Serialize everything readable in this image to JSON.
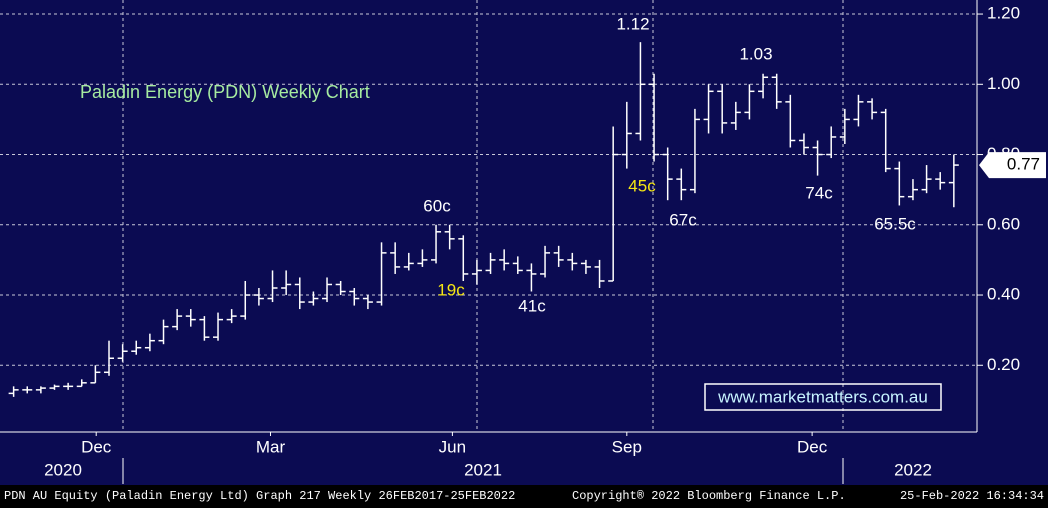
{
  "chart_data": {
    "type": "ohlc",
    "title": "Paladin Energy (PDN) Weekly Chart",
    "color": "#ffffff",
    "background": "#0b0b52",
    "grid": true,
    "xlim": [
      0,
      71.7
    ],
    "ylim": [
      0.01,
      1.24
    ],
    "yticks": [
      {
        "value": 0.2,
        "label": "0.20"
      },
      {
        "value": 0.4,
        "label": "0.40"
      },
      {
        "value": 0.6,
        "label": "0.60"
      },
      {
        "value": 0.8,
        "label": "0.80"
      },
      {
        "value": 1.0,
        "label": "1.00"
      },
      {
        "value": 1.2,
        "label": "1.20"
      }
    ],
    "xticks": [
      {
        "value": 7.06,
        "label": "Dec"
      },
      {
        "value": 19.85,
        "label": "Mar"
      },
      {
        "value": 33.2,
        "label": "Jun"
      },
      {
        "value": 46.0,
        "label": "Sep"
      },
      {
        "value": 59.6,
        "label": "Dec"
      }
    ],
    "year_labels": [
      "2020",
      "2021",
      "2022"
    ],
    "x": [
      1,
      2,
      3,
      4,
      5,
      6,
      7,
      8,
      9,
      10,
      11,
      12,
      13,
      14,
      15,
      16,
      17,
      18,
      19,
      20,
      21,
      22,
      23,
      24,
      25,
      26,
      27,
      28,
      29,
      30,
      31,
      32,
      33,
      34,
      35,
      36,
      37,
      38,
      39,
      40,
      41,
      42,
      43,
      44,
      45,
      46,
      47,
      48,
      49,
      50,
      51,
      52,
      53,
      54,
      55,
      56,
      57,
      58,
      59,
      60,
      61,
      62,
      63,
      64,
      65,
      66,
      67,
      68,
      69,
      70
    ],
    "open": [
      0.12,
      0.13,
      0.13,
      0.135,
      0.14,
      0.14,
      0.15,
      0.18,
      0.22,
      0.24,
      0.25,
      0.27,
      0.31,
      0.34,
      0.33,
      0.28,
      0.33,
      0.34,
      0.4,
      0.39,
      0.42,
      0.43,
      0.38,
      0.39,
      0.43,
      0.41,
      0.39,
      0.38,
      0.52,
      0.48,
      0.49,
      0.5,
      0.58,
      0.56,
      0.46,
      0.47,
      0.5,
      0.49,
      0.47,
      0.46,
      0.52,
      0.5,
      0.49,
      0.48,
      0.44,
      0.8,
      0.86,
      1.0,
      0.8,
      0.73,
      0.7,
      0.9,
      0.98,
      0.89,
      0.92,
      0.98,
      1.02,
      0.95,
      0.84,
      0.82,
      0.8,
      0.85,
      0.9,
      0.95,
      0.92,
      0.76,
      0.68,
      0.7,
      0.73,
      0.72
    ],
    "high": [
      0.14,
      0.14,
      0.14,
      0.145,
      0.15,
      0.16,
      0.2,
      0.27,
      0.26,
      0.27,
      0.29,
      0.33,
      0.36,
      0.36,
      0.34,
      0.35,
      0.36,
      0.44,
      0.42,
      0.47,
      0.47,
      0.45,
      0.41,
      0.45,
      0.44,
      0.42,
      0.4,
      0.55,
      0.55,
      0.52,
      0.53,
      0.6,
      0.6,
      0.57,
      0.5,
      0.52,
      0.53,
      0.51,
      0.49,
      0.54,
      0.54,
      0.52,
      0.5,
      0.5,
      0.88,
      0.95,
      1.12,
      1.03,
      0.82,
      0.76,
      0.93,
      1.0,
      1.0,
      0.95,
      1.0,
      1.03,
      1.03,
      0.97,
      0.86,
      0.84,
      0.88,
      0.93,
      0.97,
      0.96,
      0.93,
      0.78,
      0.73,
      0.77,
      0.75,
      0.8
    ],
    "low": [
      0.11,
      0.12,
      0.12,
      0.13,
      0.13,
      0.14,
      0.15,
      0.17,
      0.21,
      0.23,
      0.24,
      0.26,
      0.3,
      0.31,
      0.27,
      0.27,
      0.32,
      0.33,
      0.37,
      0.38,
      0.4,
      0.36,
      0.37,
      0.38,
      0.4,
      0.37,
      0.36,
      0.37,
      0.46,
      0.47,
      0.48,
      0.49,
      0.53,
      0.44,
      0.43,
      0.46,
      0.47,
      0.46,
      0.41,
      0.45,
      0.48,
      0.47,
      0.46,
      0.42,
      0.44,
      0.76,
      0.84,
      0.78,
      0.67,
      0.67,
      0.69,
      0.86,
      0.86,
      0.87,
      0.9,
      0.96,
      0.93,
      0.82,
      0.8,
      0.74,
      0.79,
      0.83,
      0.88,
      0.9,
      0.75,
      0.655,
      0.67,
      0.69,
      0.7,
      0.65
    ],
    "close": [
      0.13,
      0.13,
      0.135,
      0.14,
      0.14,
      0.15,
      0.18,
      0.22,
      0.24,
      0.25,
      0.27,
      0.31,
      0.34,
      0.33,
      0.28,
      0.33,
      0.34,
      0.4,
      0.39,
      0.42,
      0.43,
      0.38,
      0.39,
      0.43,
      0.41,
      0.39,
      0.38,
      0.52,
      0.48,
      0.49,
      0.5,
      0.58,
      0.56,
      0.46,
      0.47,
      0.5,
      0.49,
      0.47,
      0.46,
      0.52,
      0.5,
      0.49,
      0.48,
      0.44,
      0.8,
      0.86,
      1.0,
      0.8,
      0.73,
      0.7,
      0.9,
      0.98,
      0.89,
      0.92,
      0.98,
      1.02,
      0.95,
      0.84,
      0.82,
      0.8,
      0.85,
      0.9,
      0.95,
      0.92,
      0.76,
      0.68,
      0.7,
      0.73,
      0.72,
      0.77
    ],
    "last_price": 0.77,
    "annotations": [
      "1.12",
      "1.03",
      "60c",
      "19c",
      "41c",
      "45c",
      "67c",
      "74c",
      "65.5c"
    ],
    "source": "www.marketmatters.com.au",
    "footer": [
      "PDN AU Equity (Paladin Energy Ltd) Graph 217  Weekly 26FEB2017-25FEB2022",
      "Copyright® 2022 Bloomberg Finance L.P.",
      "25-Feb-2022 16:34:34"
    ]
  }
}
